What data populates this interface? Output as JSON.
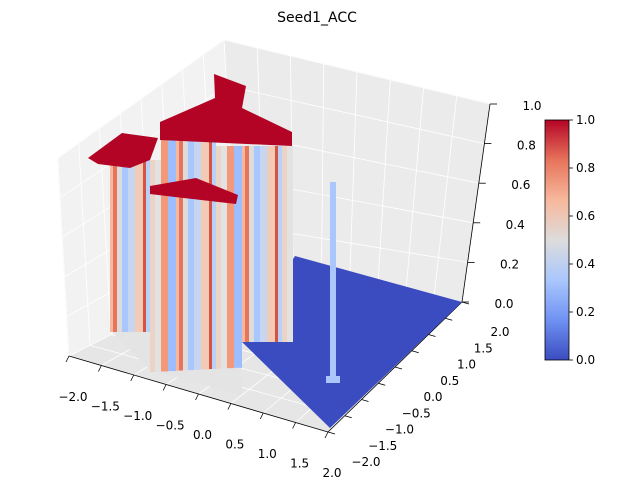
{
  "chart_data": {
    "type": "surface3d",
    "title": "Seed1_ACC",
    "xlabel": "",
    "ylabel": "",
    "zlabel": "",
    "x_ticks": [
      "−2.0",
      "−1.5",
      "−1.0",
      "−0.5",
      "0.0",
      "0.5",
      "1.0",
      "1.5",
      "2.0"
    ],
    "y_ticks": [
      "−2.0",
      "−1.5",
      "−1.0",
      "−0.5",
      "0.0",
      "0.5",
      "1.0",
      "1.5",
      "2.0"
    ],
    "z_ticks": [
      "0.0",
      "0.2",
      "0.4",
      "0.6",
      "0.8",
      "1.0"
    ],
    "xlim": [
      -2.0,
      2.0
    ],
    "ylim": [
      -2.0,
      2.0
    ],
    "zlim": [
      0.0,
      1.0
    ],
    "colormap": "coolwarm",
    "colorbar": {
      "ticks": [
        "0.0",
        "0.2",
        "0.4",
        "0.6",
        "0.8",
        "1.0"
      ],
      "range": [
        0.0,
        1.0
      ],
      "colors": [
        "#3b4cc0",
        "#6f92f3",
        "#aac7fd",
        "#dddcdc",
        "#f7b89c",
        "#e7745b",
        "#b40426"
      ]
    },
    "regions": [
      {
        "description_of_value": "plateau",
        "x_range": [
          -2.0,
          0.8
        ],
        "y_range": [
          0.3,
          2.0
        ],
        "z": 1.0
      },
      {
        "description_of_value": "floor",
        "x_range": [
          0.8,
          2.0
        ],
        "y_range": [
          -2.0,
          2.0
        ],
        "z": 0.0
      },
      {
        "description_of_value": "floor",
        "x_range": [
          -2.0,
          0.8
        ],
        "y_range": [
          -2.0,
          0.3
        ],
        "z": 0.0
      }
    ],
    "spike": {
      "x": 1.55,
      "y": 0.35,
      "z": 0.6
    },
    "grid": true,
    "legend": "colorbar-right"
  }
}
